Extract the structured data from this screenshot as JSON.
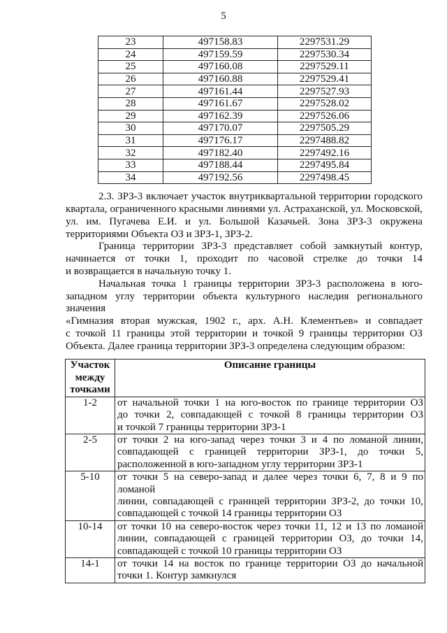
{
  "page_number": "5",
  "coords_table": [
    [
      "23",
      "497158.83",
      "2297531.29"
    ],
    [
      "24",
      "497159.59",
      "2297530.34"
    ],
    [
      "25",
      "497160.08",
      "2297529.11"
    ],
    [
      "26",
      "497160.88",
      "2297529.41"
    ],
    [
      "27",
      "497161.44",
      "2297527.93"
    ],
    [
      "28",
      "497161.67",
      "2297528.02"
    ],
    [
      "29",
      "497162.39",
      "2297526.06"
    ],
    [
      "30",
      "497170.07",
      "2297505.29"
    ],
    [
      "31",
      "497176.17",
      "2297488.82"
    ],
    [
      "32",
      "497182.40",
      "2297492.16"
    ],
    [
      "33",
      "497188.44",
      "2297495.84"
    ],
    [
      "34",
      "497192.56",
      "2297498.45"
    ]
  ],
  "paragraphs": [
    [
      "2.3. ЗРЗ-3 включает участок внутриквартальной территории городского",
      "квартала, ограниченного красными линиями ул. Астраханской, ул. Московской,",
      "ул. им. Пугачева  Е.И.  и  ул. Большой  Казачьей.  Зона  ЗРЗ-3  окружена",
      "территориями Объекта ОЗ и ЗРЗ-1, ЗРЗ-2."
    ],
    [
      "Граница территории ЗРЗ-3 представляет собой замкнутый контур,",
      "начинается от точки 1, проходит по часовой стрелке до точки 14",
      "и возвращается в начальную точку 1."
    ],
    [
      "Начальная точка 1 границы территории ЗРЗ-3 расположена в юго-",
      "западном углу территории объекта культурного наследия регионального значения",
      "«Гимназия вторая мужская, 1902 г., арх. А.Н. Клементьев» и совпадает",
      "с точкой 11 границы этой территории и точкой 9 границы территории ОЗ",
      "Объекта. Далее граница территории ЗРЗ-3 определена следующим образом:"
    ]
  ],
  "desc_table": {
    "headers": [
      "Участок между точками",
      "Описание границы"
    ],
    "header_col1_lines": [
      "Участок",
      "между",
      "точками"
    ],
    "rows": [
      {
        "segment": "1-2",
        "lines": [
          "от начальной точки 1 на юго-восток по границе территории ОЗ",
          "до точки 2, совпадающей с точкой 8 границы территории ОЗ",
          "и точкой 7 границы территории ЗРЗ-1"
        ]
      },
      {
        "segment": "2-5",
        "lines": [
          "от точки 2 на юго-запад через точки 3 и 4 по ломаной линии,",
          "совпадающей с границей территории ЗРЗ-1, до точки 5,",
          "расположенной в юго-западном углу территории ЗРЗ-1"
        ]
      },
      {
        "segment": "5-10",
        "lines": [
          "от точки 5 на северо-запад и далее через точки 6, 7, 8 и 9 по ломаной",
          "линии, совпадающей с границей территории ЗРЗ-2, до точки 10,",
          "совпадающей с точкой 14 границы территории ОЗ"
        ]
      },
      {
        "segment": "10-14",
        "lines": [
          "от точки 10 на северо-восток через точки 11, 12 и 13 по ломаной",
          "линии, совпадающей с границей территории ОЗ, до точки 14,",
          "совпадающей с точкой 10 границы территории ОЗ"
        ]
      },
      {
        "segment": "14-1",
        "lines": [
          "от точки 14 на восток по границе территории ОЗ до начальной",
          "точки 1. Контур замкнулся"
        ]
      }
    ]
  }
}
